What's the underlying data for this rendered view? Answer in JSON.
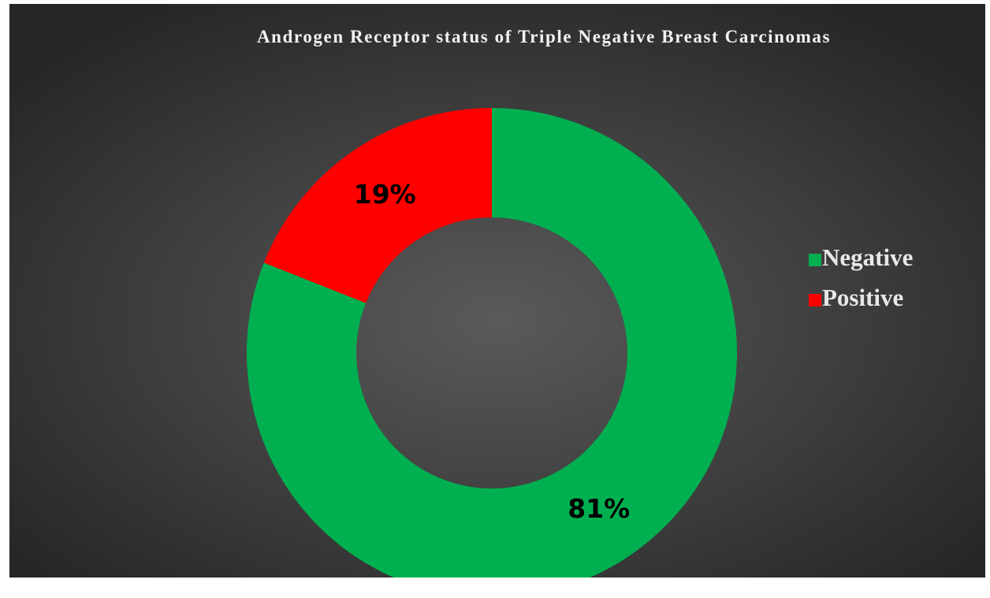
{
  "chart_data": {
    "type": "donut",
    "title": "Androgen Receptor status of Triple Negative Breast Carcinomas",
    "categories": [
      "Negative",
      "Positive"
    ],
    "values": [
      81,
      19
    ],
    "value_labels": [
      "81%",
      "19%"
    ],
    "colors": [
      "#00b050",
      "#ff0000"
    ],
    "legend": "right"
  }
}
